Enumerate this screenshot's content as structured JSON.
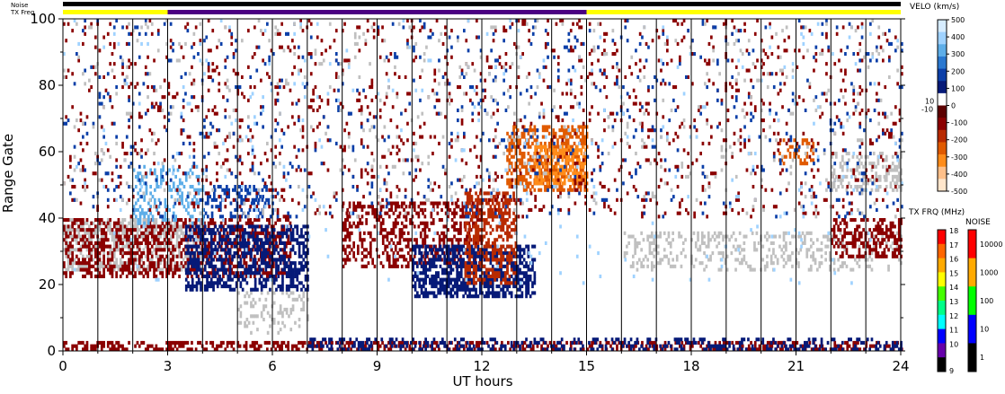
{
  "chart_data": {
    "type": "heatmap",
    "title": "",
    "xlabel": "UT hours",
    "ylabel": "Range Gate",
    "xlim": [
      0,
      24
    ],
    "ylim": [
      0,
      100
    ],
    "x_ticks": [
      0,
      3,
      6,
      9,
      12,
      15,
      18,
      21,
      24
    ],
    "y_ticks": [
      0,
      20,
      40,
      60,
      80,
      100
    ],
    "x_tick_labels": [
      "0",
      "3",
      "6",
      "9",
      "12",
      "15",
      "18",
      "21",
      "24"
    ],
    "y_tick_labels": [
      "0",
      "20",
      "40",
      "60",
      "80",
      "100"
    ],
    "grid_vertical_lines_every_hours": 1,
    "top_bars": {
      "noise_label": "Noise",
      "txfreq_label": "TX Freq",
      "noise_color": "#000000",
      "txfreq_segments": [
        {
          "start": 0,
          "end": 3,
          "color": "#ffff00"
        },
        {
          "start": 3,
          "end": 15,
          "color": "#4b0082"
        },
        {
          "start": 15,
          "end": 24,
          "color": "#ffff00"
        }
      ]
    },
    "velocity_colorbar": {
      "title": "VELO (km/s)",
      "ticks": [
        "500",
        "400",
        "300",
        "200",
        "100",
        "0",
        "-100",
        "-200",
        "-300",
        "-400",
        "-500"
      ],
      "inner_labels": [
        "10",
        "-10"
      ],
      "colors_top_to_bottom": [
        "#d6ecff",
        "#9fd2ff",
        "#5eaee8",
        "#2a78d0",
        "#0b3fa8",
        "#061a78",
        "#ffffff",
        "#5c0000",
        "#8b0000",
        "#b82a00",
        "#e05a00",
        "#ff8c1a",
        "#ffc08a",
        "#ffe6cc"
      ]
    },
    "txfreq_colorbar": {
      "title": "TX FRQ (MHz)",
      "ticks": [
        "18",
        "17",
        "16",
        "15",
        "14",
        "13",
        "12",
        "11",
        "10",
        "9"
      ],
      "colors_top_to_bottom": [
        "#ff0000",
        "#ff6600",
        "#ffaa00",
        "#ffff00",
        "#44ff00",
        "#00ff88",
        "#00ffff",
        "#0000ff",
        "#6600aa",
        "#000000"
      ]
    },
    "noise_colorbar": {
      "title": "NOISE",
      "ticks": [
        "10000",
        "1000",
        "100",
        "10",
        "1"
      ],
      "colors_top_to_bottom": [
        "#ff0000",
        "#ffaa00",
        "#00ff00",
        "#0000ff",
        "#000000"
      ]
    },
    "features": [
      {
        "name": "ground-scatter",
        "color": "#c0c0c0",
        "t0": 0,
        "t1": 4,
        "g0": 24,
        "g1": 40,
        "density": 0.55
      },
      {
        "name": "ground-scatter",
        "color": "#c0c0c0",
        "t0": 16,
        "t1": 24,
        "g0": 24,
        "g1": 36,
        "density": 0.25
      },
      {
        "name": "ground-scatter",
        "color": "#c0c0c0",
        "t0": 22,
        "t1": 24,
        "g0": 48,
        "g1": 60,
        "density": 0.35
      },
      {
        "name": "ground-scatter",
        "color": "#c0c0c0",
        "t0": 5,
        "t1": 7,
        "g0": 5,
        "g1": 18,
        "density": 0.2
      },
      {
        "name": "away-flow",
        "color": "#8b0000",
        "t0": 0,
        "t1": 6.5,
        "g0": 22,
        "g1": 40,
        "density": 0.4
      },
      {
        "name": "away-flow",
        "color": "#8b0000",
        "t0": 8,
        "t1": 12,
        "g0": 25,
        "g1": 45,
        "density": 0.35
      },
      {
        "name": "away-flow",
        "color": "#8b0000",
        "t0": 0,
        "t1": 24,
        "g0": 0,
        "g1": 3,
        "density": 0.45
      },
      {
        "name": "away-flow",
        "color": "#8b0000",
        "t0": 22,
        "t1": 24,
        "g0": 28,
        "g1": 40,
        "density": 0.45
      },
      {
        "name": "toward-flow",
        "color": "#061a78",
        "t0": 3.5,
        "t1": 7,
        "g0": 18,
        "g1": 38,
        "density": 0.5
      },
      {
        "name": "toward-flow",
        "color": "#061a78",
        "t0": 10,
        "t1": 13.5,
        "g0": 16,
        "g1": 32,
        "density": 0.6
      },
      {
        "name": "toward-flow",
        "color": "#061a78",
        "t0": 7,
        "t1": 24,
        "g0": 0,
        "g1": 4,
        "density": 0.3
      },
      {
        "name": "toward-flow",
        "color": "#0b3fa8",
        "t0": 4,
        "t1": 6,
        "g0": 40,
        "g1": 50,
        "density": 0.35
      },
      {
        "name": "toward-flow",
        "color": "#5eaee8",
        "t0": 2,
        "t1": 4,
        "g0": 38,
        "g1": 56,
        "density": 0.25
      },
      {
        "name": "strong-away",
        "color": "#e05a00",
        "t0": 12.7,
        "t1": 15,
        "g0": 48,
        "g1": 68,
        "density": 0.55
      },
      {
        "name": "strong-away",
        "color": "#ff8c1a",
        "t0": 13.5,
        "t1": 15,
        "g0": 50,
        "g1": 62,
        "density": 0.5
      },
      {
        "name": "strong-away",
        "color": "#b82a00",
        "t0": 11.5,
        "t1": 13,
        "g0": 20,
        "g1": 48,
        "density": 0.45
      },
      {
        "name": "strong-away",
        "color": "#e05a00",
        "t0": 20.5,
        "t1": 21.5,
        "g0": 56,
        "g1": 64,
        "density": 0.3
      },
      {
        "name": "sparse-away",
        "color": "#8b0000",
        "t0": 0,
        "t1": 24,
        "g0": 40,
        "g1": 100,
        "density": 0.05
      },
      {
        "name": "sparse-toward",
        "color": "#0b3fa8",
        "t0": 0,
        "t1": 24,
        "g0": 40,
        "g1": 100,
        "density": 0.025
      },
      {
        "name": "sparse-ground",
        "color": "#c0c0c0",
        "t0": 0,
        "t1": 24,
        "g0": 40,
        "g1": 100,
        "density": 0.02
      },
      {
        "name": "sparse-light",
        "color": "#9fd2ff",
        "t0": 0,
        "t1": 24,
        "g0": 20,
        "g1": 100,
        "density": 0.01
      }
    ]
  }
}
